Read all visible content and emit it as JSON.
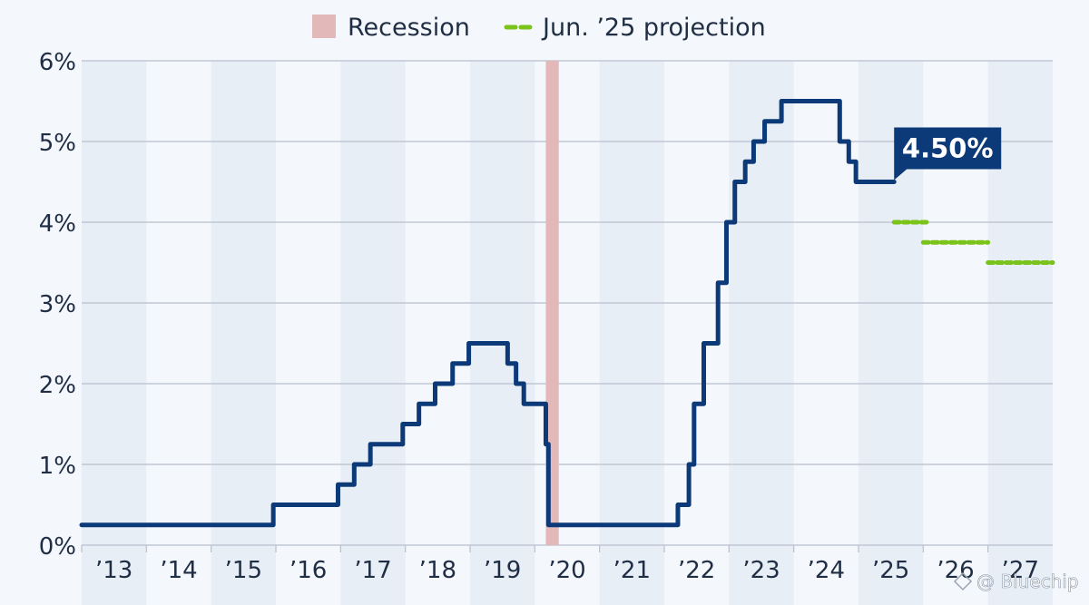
{
  "colors": {
    "background": "#f4f7fb",
    "band": "#e8eef6",
    "grid": "#b8c0cc",
    "axis_text": "#1f2e44",
    "rate_line": "#0c3978",
    "projection": "#7ac31a",
    "recession": "#e3b8b8",
    "callout_bg": "#0c3978"
  },
  "chart_data": {
    "type": "line",
    "legend_placement": "top-center",
    "legend": [
      {
        "label": "Recession",
        "kind": "box",
        "icon": "recession-box-icon"
      },
      {
        "label": "Jun. ’25 projection",
        "kind": "dashed-line",
        "icon": "projection-dash-icon"
      }
    ],
    "x_ticks": [
      "’13",
      "’14",
      "’15",
      "’16",
      "’17",
      "’18",
      "’19",
      "’20",
      "’21",
      "’22",
      "’23",
      "’24",
      "’25",
      "’26",
      "’27"
    ],
    "xlim": [
      2013.0,
      2028.0
    ],
    "ylim": [
      0,
      6
    ],
    "y_ticks": [
      0,
      1,
      2,
      3,
      4,
      5,
      6
    ],
    "y_tick_labels": [
      "0%",
      "1%",
      "2%",
      "3%",
      "4%",
      "5%",
      "6%"
    ],
    "grid": true,
    "alternating_year_bands": true,
    "recession": {
      "start": 2020.17,
      "end": 2020.37
    },
    "series": [
      {
        "kind": "step",
        "points": [
          [
            2013.0,
            0.25
          ],
          [
            2015.96,
            0.5
          ],
          [
            2016.96,
            0.75
          ],
          [
            2017.21,
            1.0
          ],
          [
            2017.46,
            1.25
          ],
          [
            2017.96,
            1.5
          ],
          [
            2018.21,
            1.75
          ],
          [
            2018.46,
            2.0
          ],
          [
            2018.73,
            2.25
          ],
          [
            2018.98,
            2.5
          ],
          [
            2019.58,
            2.25
          ],
          [
            2019.71,
            2.0
          ],
          [
            2019.83,
            1.75
          ],
          [
            2020.17,
            1.25
          ],
          [
            2020.21,
            0.25
          ],
          [
            2022.21,
            0.5
          ],
          [
            2022.38,
            1.0
          ],
          [
            2022.46,
            1.75
          ],
          [
            2022.61,
            2.5
          ],
          [
            2022.83,
            3.25
          ],
          [
            2022.96,
            4.0
          ],
          [
            2023.09,
            4.5
          ],
          [
            2023.25,
            4.75
          ],
          [
            2023.38,
            5.0
          ],
          [
            2023.55,
            5.25
          ],
          [
            2023.81,
            5.5
          ],
          [
            2024.71,
            5.0
          ],
          [
            2024.85,
            4.75
          ],
          [
            2024.96,
            4.5
          ],
          [
            2025.55,
            4.5
          ]
        ]
      },
      {
        "kind": "projection",
        "segments": [
          {
            "x0": 2025.55,
            "x1": 2026.05,
            "y": 4.0
          },
          {
            "x0": 2026.0,
            "x1": 2027.0,
            "y": 3.75
          },
          {
            "x0": 2027.0,
            "x1": 2028.0,
            "y": 3.5
          }
        ]
      }
    ],
    "annotations": [
      {
        "text": "4.50%",
        "x": 2025.55,
        "y": 4.5
      }
    ]
  },
  "watermark": "@ Bluechip"
}
